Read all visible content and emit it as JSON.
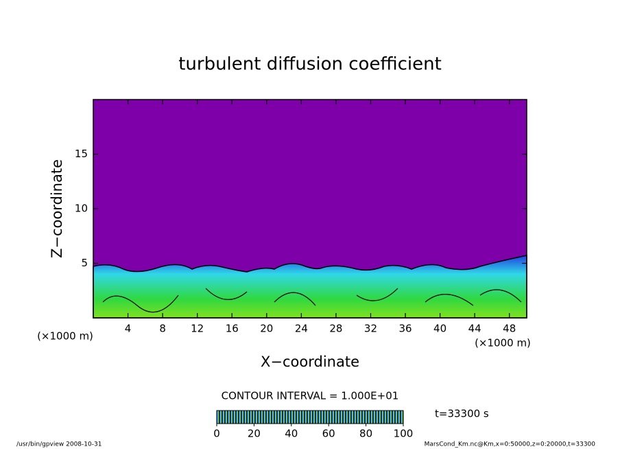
{
  "chart_data": {
    "type": "contour",
    "title": "turbulent diffusion coefficient",
    "x_label": "X−coordinate",
    "y_label": "Z−coordinate",
    "x_unit_label": "(×1000 m)",
    "xlim": [
      0,
      50
    ],
    "ylim": [
      0,
      20
    ],
    "xticks": [
      4,
      8,
      12,
      16,
      20,
      24,
      28,
      32,
      36,
      40,
      44,
      48
    ],
    "yticks": [
      5,
      10,
      15
    ],
    "contour_interval_label": "CONTOUR INTERVAL = 1.000E+01",
    "time_label": "t=33300 s",
    "colorbar": {
      "lim": [
        0,
        100
      ],
      "ticks": [
        0,
        20,
        40,
        60,
        80,
        100
      ]
    },
    "footer_left": "/usr/bin/gpview  2008-10-31",
    "footer_right": "MarsCond_Km.nc@Km,x=0:50000,z=0:20000,t=33300"
  }
}
